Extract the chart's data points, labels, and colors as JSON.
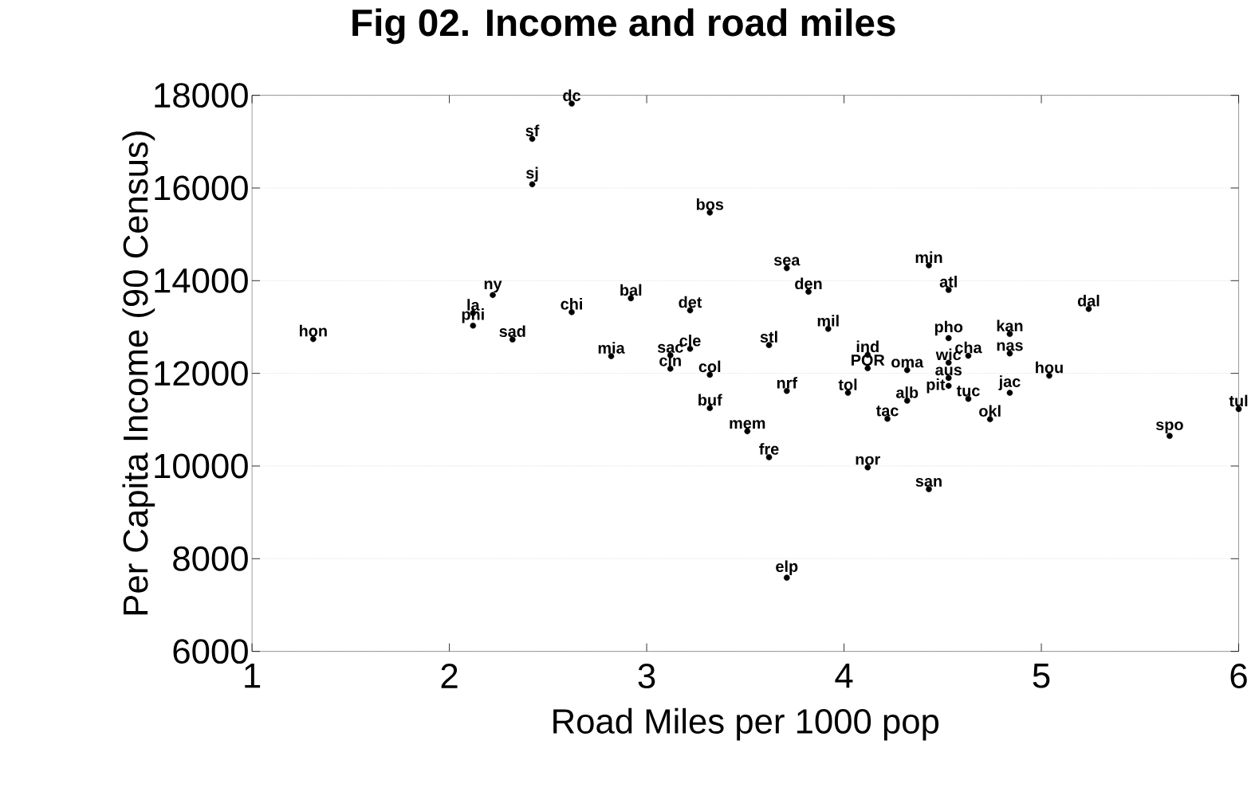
{
  "chart_data": {
    "type": "scatter",
    "title": "Fig 02. Income and road miles",
    "xlabel": "Road Miles per 1000 pop",
    "ylabel": "Per Capita Income (90 Census)",
    "xlim": [
      1,
      6
    ],
    "xticks": [
      1,
      2,
      3,
      4,
      5,
      6
    ],
    "ylim": [
      6000,
      18000
    ],
    "yticks": [
      6000,
      8000,
      10000,
      12000,
      14000,
      16000,
      18000
    ],
    "grid": "y",
    "series": [
      {
        "color": "#000000",
        "x": [
          1.31,
          2.12,
          2.12,
          2.22,
          2.32,
          2.42,
          2.42,
          2.62,
          2.62,
          2.92,
          2.82,
          3.22,
          3.22,
          3.12,
          3.12,
          3.32,
          3.32,
          3.32,
          3.51,
          3.62,
          3.71,
          3.71,
          3.82,
          3.92,
          3.62,
          3.71,
          4.02,
          4.12,
          4.12,
          4.32,
          4.32,
          4.22,
          4.12,
          4.43,
          4.43,
          4.53,
          4.53,
          4.53,
          4.53,
          4.53,
          4.63,
          4.63,
          4.84,
          4.84,
          4.84,
          4.74,
          5.04,
          5.24,
          5.65,
          6.0
        ],
        "values": [
          12740,
          13300,
          13030,
          13690,
          12730,
          17060,
          16080,
          17820,
          13320,
          13620,
          12370,
          13360,
          12530,
          12100,
          12390,
          15470,
          11970,
          11250,
          10750,
          10190,
          7590,
          14270,
          13760,
          12960,
          12610,
          11620,
          11580,
          12110,
          12400,
          12070,
          11410,
          11020,
          9970,
          9500,
          14330,
          13800,
          12760,
          12230,
          11900,
          11730,
          11450,
          12380,
          12850,
          12430,
          11580,
          11010,
          11950,
          13390,
          10650,
          11230
        ]
      }
    ],
    "annotations": [
      {
        "text": "hon",
        "x": 1.31,
        "y": 12740
      },
      {
        "text": "la",
        "x": 2.12,
        "y": 13300
      },
      {
        "text": "phi",
        "x": 2.12,
        "y": 13030
      },
      {
        "text": "ny",
        "x": 2.22,
        "y": 13690
      },
      {
        "text": "sad",
        "x": 2.32,
        "y": 12730
      },
      {
        "text": "sf",
        "x": 2.42,
        "y": 17060
      },
      {
        "text": "sj",
        "x": 2.42,
        "y": 16080
      },
      {
        "text": "dc",
        "x": 2.62,
        "y": 17820
      },
      {
        "text": "chi",
        "x": 2.62,
        "y": 13320
      },
      {
        "text": "bal",
        "x": 2.92,
        "y": 13620
      },
      {
        "text": "mia",
        "x": 2.82,
        "y": 12370
      },
      {
        "text": "det",
        "x": 3.22,
        "y": 13360
      },
      {
        "text": "cle",
        "x": 3.22,
        "y": 12530
      },
      {
        "text": "cin",
        "x": 3.12,
        "y": 12100
      },
      {
        "text": "sac",
        "x": 3.12,
        "y": 12390
      },
      {
        "text": "bos",
        "x": 3.32,
        "y": 15470
      },
      {
        "text": "col",
        "x": 3.32,
        "y": 11970
      },
      {
        "text": "buf",
        "x": 3.32,
        "y": 11250
      },
      {
        "text": "mem",
        "x": 3.51,
        "y": 10750
      },
      {
        "text": "fre",
        "x": 3.62,
        "y": 10190
      },
      {
        "text": "elp",
        "x": 3.71,
        "y": 7590
      },
      {
        "text": "sea",
        "x": 3.71,
        "y": 14270
      },
      {
        "text": "den",
        "x": 3.82,
        "y": 13760
      },
      {
        "text": "mil",
        "x": 3.92,
        "y": 12960
      },
      {
        "text": "stl",
        "x": 3.62,
        "y": 12610
      },
      {
        "text": "nrf",
        "x": 3.71,
        "y": 11620
      },
      {
        "text": "tol",
        "x": 4.02,
        "y": 11580
      },
      {
        "text": "POR",
        "x": 4.12,
        "y": 12110
      },
      {
        "text": "ind",
        "x": 4.12,
        "y": 12400
      },
      {
        "text": "oma",
        "x": 4.32,
        "y": 12070
      },
      {
        "text": "alb",
        "x": 4.32,
        "y": 11410
      },
      {
        "text": "tac",
        "x": 4.22,
        "y": 11020
      },
      {
        "text": "nor",
        "x": 4.12,
        "y": 9970
      },
      {
        "text": "san",
        "x": 4.43,
        "y": 9500
      },
      {
        "text": "min",
        "x": 4.43,
        "y": 14330
      },
      {
        "text": "atl",
        "x": 4.53,
        "y": 13800
      },
      {
        "text": "pho",
        "x": 4.53,
        "y": 12760
      },
      {
        "text": "wic",
        "x": 4.53,
        "y": 12230
      },
      {
        "text": "aus",
        "x": 4.53,
        "y": 11900
      },
      {
        "text": "pit",
        "x": 4.53,
        "y": 11730
      },
      {
        "text": "tuc",
        "x": 4.63,
        "y": 11450
      },
      {
        "text": "cha",
        "x": 4.63,
        "y": 12380
      },
      {
        "text": "kan",
        "x": 4.84,
        "y": 12850
      },
      {
        "text": "nas",
        "x": 4.84,
        "y": 12430
      },
      {
        "text": "jac",
        "x": 4.84,
        "y": 11580
      },
      {
        "text": "okl",
        "x": 4.74,
        "y": 11010
      },
      {
        "text": "hou",
        "x": 5.04,
        "y": 11950
      },
      {
        "text": "dal",
        "x": 5.24,
        "y": 13390
      },
      {
        "text": "spo",
        "x": 5.65,
        "y": 10650
      },
      {
        "text": "tul",
        "x": 6.0,
        "y": 11230
      }
    ]
  }
}
